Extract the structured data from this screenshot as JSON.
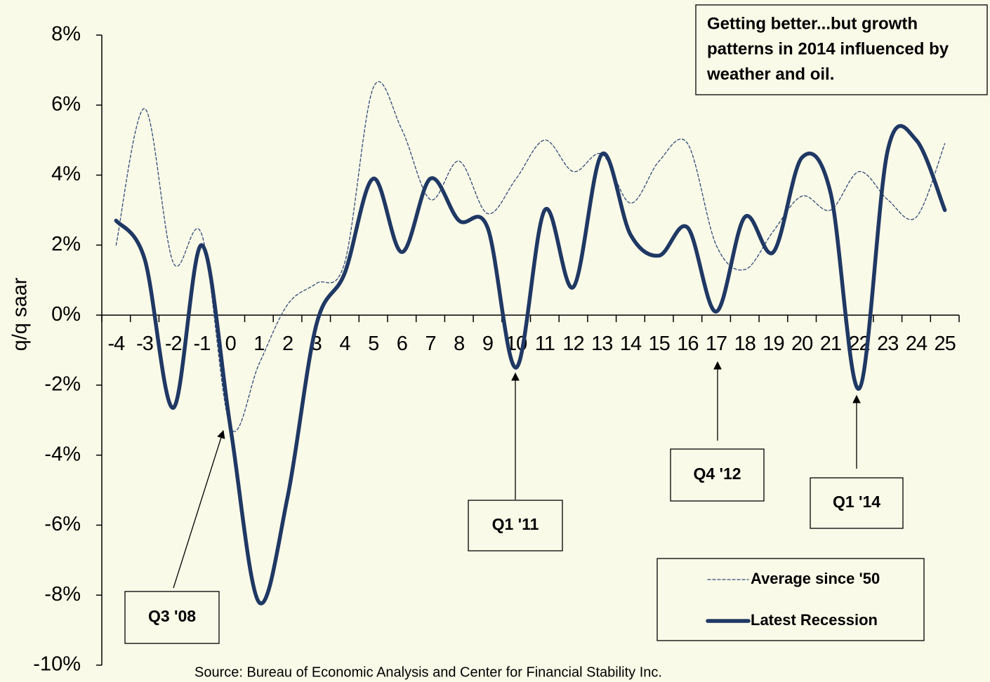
{
  "chart_data": {
    "type": "line",
    "y_label": "q/q saar",
    "source": "Source: Bureau of Economic Analysis and Center for Financial Stability Inc.",
    "note": [
      "Getting better...but growth",
      "patterns in  2014 influenced by",
      "weather and oil."
    ],
    "categories": [
      -4,
      -3,
      -2,
      -1,
      0,
      1,
      2,
      3,
      4,
      5,
      6,
      7,
      8,
      9,
      10,
      11,
      12,
      13,
      14,
      15,
      16,
      17,
      18,
      19,
      20,
      21,
      22,
      23,
      24,
      25
    ],
    "series": [
      {
        "name": "Average since '50",
        "color": "#2e4a78",
        "style": "dashed",
        "values": [
          2.0,
          5.9,
          1.5,
          2.3,
          -3.2,
          -1.4,
          0.3,
          0.9,
          1.5,
          6.5,
          5.3,
          3.3,
          4.4,
          2.9,
          3.9,
          5.0,
          4.1,
          4.6,
          3.2,
          4.4,
          4.9,
          2.0,
          1.3,
          2.4,
          3.4,
          3.0,
          4.1,
          3.3,
          2.8,
          4.9
        ]
      },
      {
        "name": "Latest Recession",
        "color": "#1f3864",
        "style": "solid",
        "values": [
          2.7,
          1.6,
          -2.65,
          2.0,
          -3.2,
          -8.2,
          -5.2,
          -0.3,
          1.2,
          3.9,
          1.8,
          3.9,
          2.7,
          2.5,
          -1.5,
          3.0,
          0.8,
          4.6,
          2.3,
          1.7,
          2.5,
          0.1,
          2.8,
          1.8,
          4.5,
          3.5,
          -2.1,
          4.7,
          5.0,
          3.0
        ]
      }
    ],
    "annotations": [
      "Q3 '08",
      "Q1 '11",
      "Q4 '12",
      "Q1 '14"
    ],
    "ylim": [
      -10,
      8
    ],
    "yticks": [
      {
        "value": -10,
        "label": "-10%"
      },
      {
        "value": -8,
        "label": "-8%"
      },
      {
        "value": -6,
        "label": "-6%"
      },
      {
        "value": -4,
        "label": "-4%"
      },
      {
        "value": -2,
        "label": "-2%"
      },
      {
        "value": 0,
        "label": "0%"
      },
      {
        "value": 2,
        "label": "2%"
      },
      {
        "value": 4,
        "label": "4%"
      },
      {
        "value": 6,
        "label": "6%"
      },
      {
        "value": 8,
        "label": "8%"
      }
    ],
    "legend": "lower right"
  }
}
